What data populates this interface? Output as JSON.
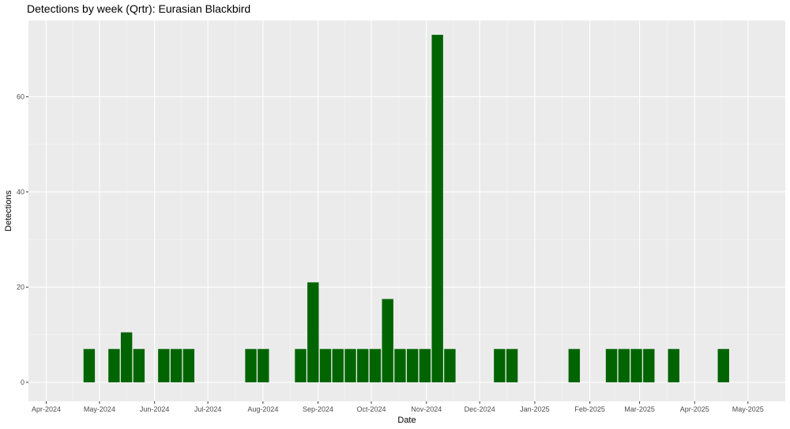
{
  "chart_data": {
    "type": "bar",
    "title": "Detections by week (Qrtr): Eurasian Blackbird",
    "xlabel": "Date",
    "ylabel": "Detections",
    "grid": true,
    "legend": "none",
    "colors": {
      "bar": "#006400",
      "panel": "#ebebeb",
      "grid_major": "#ffffff"
    },
    "x_range": [
      "2024-03-22",
      "2025-05-22"
    ],
    "ylim": [
      -4,
      76
    ],
    "y_ticks": [
      0,
      20,
      40,
      60
    ],
    "x_ticks": [
      {
        "date": "2024-04-01",
        "label": "Apr-2024"
      },
      {
        "date": "2024-05-01",
        "label": "May-2024"
      },
      {
        "date": "2024-06-01",
        "label": "Jun-2024"
      },
      {
        "date": "2024-07-01",
        "label": "Jul-2024"
      },
      {
        "date": "2024-08-01",
        "label": "Aug-2024"
      },
      {
        "date": "2024-09-01",
        "label": "Sep-2024"
      },
      {
        "date": "2024-10-01",
        "label": "Oct-2024"
      },
      {
        "date": "2024-11-01",
        "label": "Nov-2024"
      },
      {
        "date": "2024-12-01",
        "label": "Dec-2024"
      },
      {
        "date": "2025-01-01",
        "label": "Jan-2025"
      },
      {
        "date": "2025-02-01",
        "label": "Feb-2025"
      },
      {
        "date": "2025-03-01",
        "label": "Mar-2025"
      },
      {
        "date": "2025-04-01",
        "label": "Apr-2025"
      },
      {
        "date": "2025-05-01",
        "label": "May-2025"
      }
    ],
    "bars": [
      {
        "week_start": "2024-04-22",
        "value": 7
      },
      {
        "week_start": "2024-05-06",
        "value": 7
      },
      {
        "week_start": "2024-05-13",
        "value": 10.5
      },
      {
        "week_start": "2024-05-20",
        "value": 7
      },
      {
        "week_start": "2024-06-03",
        "value": 7
      },
      {
        "week_start": "2024-06-10",
        "value": 7
      },
      {
        "week_start": "2024-06-17",
        "value": 7
      },
      {
        "week_start": "2024-07-22",
        "value": 7
      },
      {
        "week_start": "2024-07-29",
        "value": 7
      },
      {
        "week_start": "2024-08-19",
        "value": 7
      },
      {
        "week_start": "2024-08-26",
        "value": 21
      },
      {
        "week_start": "2024-09-02",
        "value": 7
      },
      {
        "week_start": "2024-09-09",
        "value": 7
      },
      {
        "week_start": "2024-09-16",
        "value": 7
      },
      {
        "week_start": "2024-09-23",
        "value": 7
      },
      {
        "week_start": "2024-09-30",
        "value": 7
      },
      {
        "week_start": "2024-10-07",
        "value": 17.5
      },
      {
        "week_start": "2024-10-14",
        "value": 7
      },
      {
        "week_start": "2024-10-21",
        "value": 7
      },
      {
        "week_start": "2024-10-28",
        "value": 7
      },
      {
        "week_start": "2024-11-04",
        "value": 73
      },
      {
        "week_start": "2024-11-11",
        "value": 7
      },
      {
        "week_start": "2024-12-09",
        "value": 7
      },
      {
        "week_start": "2024-12-16",
        "value": 7
      },
      {
        "week_start": "2025-01-20",
        "value": 7
      },
      {
        "week_start": "2025-02-10",
        "value": 7
      },
      {
        "week_start": "2025-02-17",
        "value": 7
      },
      {
        "week_start": "2025-02-24",
        "value": 7
      },
      {
        "week_start": "2025-03-03",
        "value": 7
      },
      {
        "week_start": "2025-03-17",
        "value": 7
      },
      {
        "week_start": "2025-04-14",
        "value": 7
      }
    ]
  }
}
